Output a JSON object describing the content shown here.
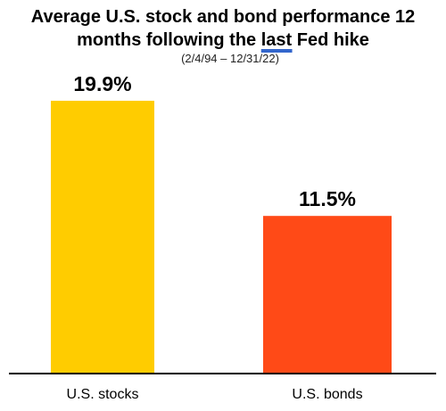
{
  "chart_data": {
    "type": "bar",
    "title_line1": "Average U.S. stock and bond performance 12",
    "title_line2_pre": "months following the ",
    "title_line2_emph": "last",
    "title_line2_post": " Fed hike",
    "subtitle": "(2/4/94 – 12/31/22)",
    "categories": [
      "U.S. stocks",
      "U.S. bonds"
    ],
    "values": [
      19.9,
      11.5
    ],
    "value_labels": [
      "19.9%",
      "11.5%"
    ],
    "colors": [
      "#FFCC00",
      "#FF4A17"
    ],
    "ylim": [
      0,
      22.7
    ],
    "grid": false,
    "legend": "none"
  },
  "colors": {
    "emphasis_underline": "#3366CC",
    "axis": "#000000"
  }
}
